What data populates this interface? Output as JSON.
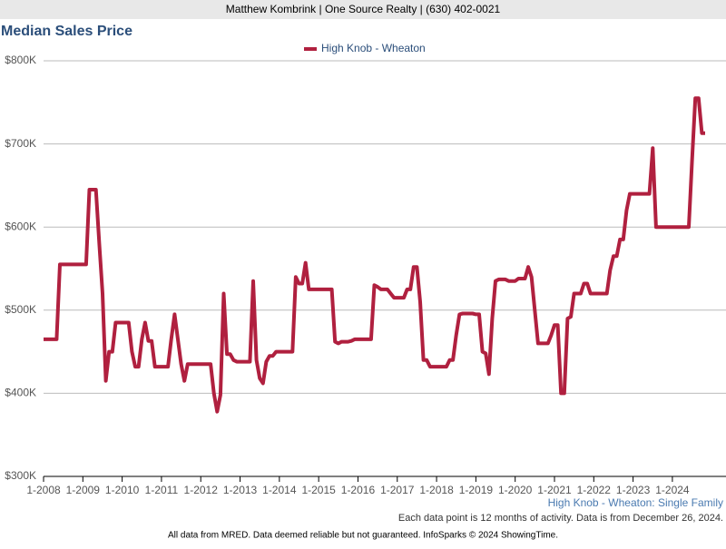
{
  "header": "Matthew Kombrink | One Source Realty | (630) 402-0021",
  "chart_data": {
    "type": "line",
    "title": "Median Sales Price",
    "subtitle": "High Knob - Wheaton: Single Family",
    "note": "Each data point is 12 months of activity. Data is from December 26, 2024.",
    "categories": [
      "1-2008",
      null,
      null,
      null,
      null,
      null,
      null,
      null,
      null,
      null,
      null,
      null,
      "1-2009",
      null,
      null,
      null,
      null,
      null,
      null,
      null,
      null,
      null,
      null,
      null,
      "1-2010",
      null,
      null,
      null,
      null,
      null,
      null,
      null,
      null,
      null,
      null,
      null,
      "1-2011",
      null,
      null,
      null,
      null,
      null,
      null,
      null,
      null,
      null,
      null,
      null,
      "1-2012",
      null,
      null,
      null,
      null,
      null,
      null,
      null,
      null,
      null,
      null,
      null,
      "1-2013",
      null,
      null,
      null,
      null,
      null,
      null,
      null,
      null,
      null,
      null,
      null,
      "1-2014",
      null,
      null,
      null,
      null,
      null,
      null,
      null,
      null,
      null,
      null,
      null,
      "1-2015",
      null,
      null,
      null,
      null,
      null,
      null,
      null,
      null,
      null,
      null,
      null,
      "1-2016",
      null,
      null,
      null,
      null,
      null,
      null,
      null,
      null,
      null,
      null,
      null,
      "1-2017",
      null,
      null,
      null,
      null,
      null,
      null,
      null,
      null,
      null,
      null,
      null,
      "1-2018",
      null,
      null,
      null,
      null,
      null,
      null,
      null,
      null,
      null,
      null,
      null,
      "1-2019",
      null,
      null,
      null,
      null,
      null,
      null,
      null,
      null,
      null,
      null,
      null,
      "1-2020",
      null,
      null,
      null,
      null,
      null,
      null,
      null,
      null,
      null,
      null,
      null,
      "1-2021",
      null,
      null,
      null,
      null,
      null,
      null,
      null,
      null,
      null,
      null,
      null,
      "1-2022",
      null,
      null,
      null,
      null,
      null,
      null,
      null,
      null,
      null,
      null,
      null,
      "1-2023",
      null,
      null,
      null,
      null,
      null,
      null,
      null,
      null,
      null,
      null,
      null,
      "1-2024",
      null,
      null,
      null,
      null,
      null,
      null,
      null,
      null,
      null,
      null
    ],
    "series": [
      {
        "name": "High Knob - Wheaton",
        "color": "#b0203f",
        "values": [
          465000,
          465000,
          465000,
          465000,
          465000,
          555000,
          555000,
          555000,
          555000,
          555000,
          555000,
          555000,
          555000,
          555000,
          645000,
          645000,
          645000,
          580000,
          520000,
          415000,
          450000,
          450000,
          485000,
          485000,
          485000,
          485000,
          485000,
          450000,
          432000,
          432000,
          465000,
          485000,
          463000,
          463000,
          432000,
          432000,
          432000,
          432000,
          432000,
          465000,
          495000,
          465000,
          435000,
          415000,
          435000,
          435000,
          435000,
          435000,
          435000,
          435000,
          435000,
          435000,
          400000,
          378000,
          398000,
          520000,
          447000,
          447000,
          440000,
          438000,
          438000,
          438000,
          438000,
          438000,
          535000,
          440000,
          418000,
          412000,
          438000,
          445000,
          445000,
          450000,
          450000,
          450000,
          450000,
          450000,
          450000,
          540000,
          532000,
          532000,
          557000,
          525000,
          525000,
          525000,
          525000,
          525000,
          525000,
          525000,
          525000,
          462000,
          460000,
          462000,
          462000,
          462000,
          463000,
          465000,
          465000,
          465000,
          465000,
          465000,
          465000,
          530000,
          528000,
          525000,
          525000,
          525000,
          520000,
          515000,
          515000,
          515000,
          515000,
          525000,
          525000,
          552000,
          552000,
          510000,
          440000,
          440000,
          432000,
          432000,
          432000,
          432000,
          432000,
          432000,
          440000,
          440000,
          470000,
          495000,
          496000,
          496000,
          496000,
          496000,
          495000,
          495000,
          450000,
          448000,
          423000,
          490000,
          535000,
          537000,
          537000,
          537000,
          535000,
          535000,
          535000,
          538000,
          538000,
          538000,
          552000,
          540000,
          500000,
          460000,
          460000,
          460000,
          460000,
          470000,
          482000,
          482000,
          400000,
          400000,
          490000,
          492000,
          520000,
          520000,
          520000,
          532000,
          532000,
          520000,
          520000,
          520000,
          520000,
          520000,
          520000,
          548000,
          565000,
          565000,
          585000,
          585000,
          620000,
          640000,
          640000,
          640000,
          640000,
          640000,
          640000,
          640000,
          695000,
          600000,
          600000,
          600000,
          600000,
          600000,
          600000,
          600000,
          600000,
          600000,
          600000,
          600000,
          680000,
          755000,
          755000,
          713000,
          713000
        ]
      }
    ],
    "ylim": [
      300000,
      800000
    ],
    "yticks": [
      {
        "value": 300000,
        "label": "$300K"
      },
      {
        "value": 400000,
        "label": "$400K"
      },
      {
        "value": 500000,
        "label": "$500K"
      },
      {
        "value": 600000,
        "label": "$600K"
      },
      {
        "value": 700000,
        "label": "$700K"
      },
      {
        "value": 800000,
        "label": "$800K"
      }
    ],
    "grid": true
  },
  "footer": "All data from MRED. Data deemed reliable but not guaranteed. InfoSparks © 2024 ShowingTime."
}
